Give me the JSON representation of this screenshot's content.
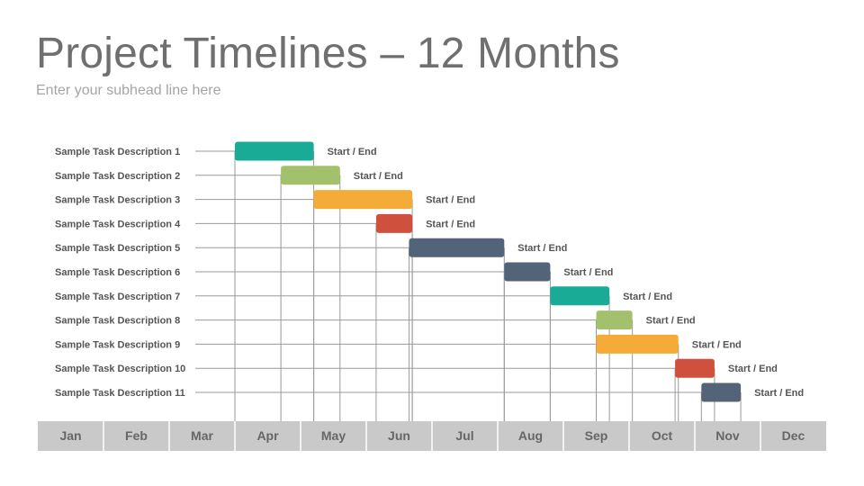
{
  "header": {
    "title": "Project Timelines – 12 Months",
    "subtitle": "Enter your subhead line here"
  },
  "chart_data": {
    "type": "bar",
    "orientation": "gantt",
    "title": "Project Timelines – 12 Months",
    "subtitle": "Enter your subhead line here",
    "months": [
      "Jan",
      "Feb",
      "Mar",
      "Apr",
      "May",
      "Jun",
      "Jul",
      "Aug",
      "Sep",
      "Oct",
      "Nov",
      "Dec"
    ],
    "xlim": [
      0,
      12
    ],
    "xunit": "months from start of Jan",
    "grid": "vertical lines at task start and end",
    "tasks": [
      {
        "label": "Sample Task Description 1",
        "start": 3.0,
        "end": 4.2,
        "color": "#1aab97",
        "end_label": "Start / End"
      },
      {
        "label": "Sample Task Description 2",
        "start": 3.7,
        "end": 4.6,
        "color": "#a3c06c",
        "end_label": "Start / End"
      },
      {
        "label": "Sample Task Description 3",
        "start": 4.2,
        "end": 5.7,
        "color": "#f4ab38",
        "end_label": "Start / End"
      },
      {
        "label": "Sample Task Description 4",
        "start": 5.15,
        "end": 5.7,
        "color": "#cf503d",
        "end_label": "Start / End"
      },
      {
        "label": "Sample Task Description 5",
        "start": 5.65,
        "end": 7.1,
        "color": "#546478",
        "end_label": "Start / End"
      },
      {
        "label": "Sample Task Description 6",
        "start": 7.1,
        "end": 7.8,
        "color": "#546478",
        "end_label": "Start / End"
      },
      {
        "label": "Sample Task Description 7",
        "start": 7.8,
        "end": 8.7,
        "color": "#1aab97",
        "end_label": "Start / End"
      },
      {
        "label": "Sample Task Description 8",
        "start": 8.5,
        "end": 9.05,
        "color": "#a3c06c",
        "end_label": "Start / End"
      },
      {
        "label": "Sample Task Description 9",
        "start": 8.5,
        "end": 9.75,
        "color": "#f4ab38",
        "end_label": "Start / End"
      },
      {
        "label": "Sample Task Description 10",
        "start": 9.7,
        "end": 10.3,
        "color": "#cf503d",
        "end_label": "Start / End"
      },
      {
        "label": "Sample Task Description 11",
        "start": 10.1,
        "end": 10.7,
        "color": "#546478",
        "end_label": "Start / End"
      }
    ]
  },
  "colors": {
    "teal": "#1aab97",
    "green": "#a3c06c",
    "orange": "#f4ab38",
    "red": "#cf503d",
    "slate": "#546478",
    "month_bar": "#c9c9c9",
    "month_text": "#666666",
    "gridline": "#9a9a9a",
    "label_text": "#555555"
  }
}
